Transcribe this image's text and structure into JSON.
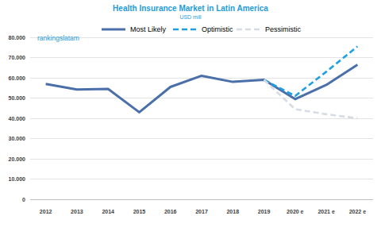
{
  "chart_data": {
    "type": "line",
    "title": "Health Insurance Market in Latin America",
    "subtitle": "USD mill",
    "annotation": "rankingslatam",
    "categories": [
      "2012",
      "2013",
      "2014",
      "2015",
      "2016",
      "2017",
      "2018",
      "2019",
      "2020 e",
      "2021 e",
      "2022 e"
    ],
    "series": [
      {
        "name": "Most Likely",
        "color": "#4a6fa9",
        "line_style": "solid",
        "values": [
          57000,
          54200,
          54500,
          43000,
          55500,
          61000,
          58000,
          59000,
          49500,
          56500,
          66500
        ]
      },
      {
        "name": "Optimistic",
        "color": "#1ea0e0",
        "line_style": "dashed",
        "values": [
          null,
          null,
          null,
          null,
          null,
          null,
          null,
          59000,
          51000,
          63000,
          75500
        ]
      },
      {
        "name": "Pessimistic",
        "color": "#d6dbe4",
        "line_style": "dashed",
        "values": [
          null,
          null,
          null,
          null,
          null,
          null,
          null,
          59000,
          44500,
          42000,
          40000
        ]
      }
    ],
    "ylim": [
      0,
      80000
    ],
    "yticks": [
      0,
      {
        "value": 10000,
        "label": "10.000"
      },
      {
        "value": 20000,
        "label": "20.000"
      },
      {
        "value": 30000,
        "label": "30.000"
      },
      {
        "value": 40000,
        "label": "40.000"
      },
      {
        "value": 50000,
        "label": "50.000"
      },
      {
        "value": 60000,
        "label": "60.000"
      },
      {
        "value": 70000,
        "label": "70.000"
      },
      {
        "value": 80000,
        "label": "80.000"
      }
    ],
    "grid": true,
    "legend": "top"
  }
}
